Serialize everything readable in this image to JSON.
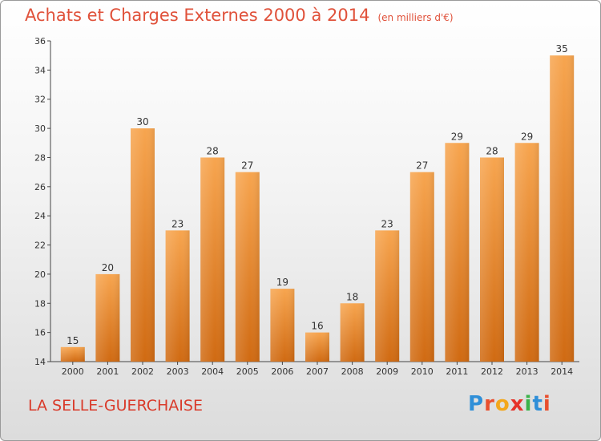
{
  "chart_data": {
    "type": "bar",
    "title": "Achats et Charges Externes 2000 à 2014",
    "subtitle": "(en milliers d'€)",
    "categories": [
      "2000",
      "2001",
      "2002",
      "2003",
      "2004",
      "2005",
      "2006",
      "2007",
      "2008",
      "2009",
      "2010",
      "2011",
      "2012",
      "2013",
      "2014"
    ],
    "values": [
      15,
      20,
      30,
      23,
      28,
      27,
      19,
      16,
      18,
      23,
      27,
      29,
      28,
      29,
      35
    ],
    "ylim": [
      14,
      36
    ],
    "yticks": [
      14,
      16,
      18,
      20,
      22,
      24,
      26,
      28,
      30,
      32,
      34,
      36
    ],
    "xlabel": "",
    "ylabel": "",
    "grid": false,
    "bar_color_top": "#f7a54f",
    "bar_color_bottom": "#d06a12"
  },
  "footer": {
    "commune": "LA SELLE-GUERCHAISE",
    "logo_letters": [
      "P",
      "r",
      "o",
      "x",
      "i",
      "t",
      "i"
    ],
    "logo_colors": [
      "#2f8fd8",
      "#e94f2e",
      "#f3a71c",
      "#e6332a",
      "#3bb34a",
      "#2f8fd8",
      "#e94f2e"
    ]
  }
}
